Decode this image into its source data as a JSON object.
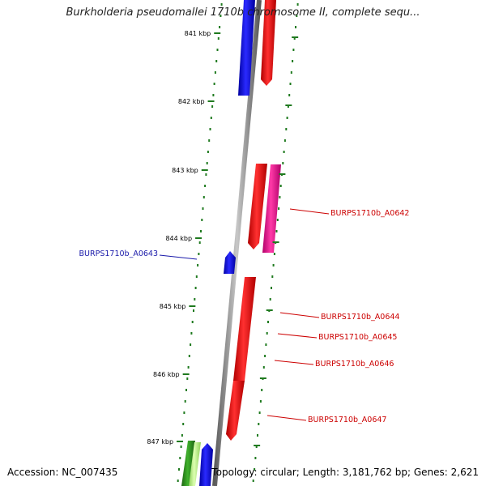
{
  "title": "Burkholderia pseudomallei 1710b chromosome II, complete sequ...",
  "footer": {
    "accession": "Accession: NC_007435",
    "info": "Topology: circular; Length: 3,181,762 bp; Genes: 2,621"
  },
  "colors": {
    "backbone": "#8c8c8c",
    "forward_gene": "#e8121c",
    "reverse_gene": "#1414e0",
    "pseudogene_pink": "#e8148c",
    "green_gene": "#2f8f1f",
    "light_green_gene": "#b2f07a",
    "tick": "#1f7a1f",
    "label_forward": "#cc0000",
    "label_reverse": "#1a1aaa"
  },
  "ticks": [
    {
      "label": "841 kbp"
    },
    {
      "label": "842 kbp"
    },
    {
      "label": "843 kbp"
    },
    {
      "label": "844 kbp"
    },
    {
      "label": "845 kbp"
    },
    {
      "label": "846 kbp"
    },
    {
      "label": "847 kbp"
    }
  ],
  "gene_labels": [
    {
      "text": "BURPS1710b_A0642",
      "strand": "forward"
    },
    {
      "text": "BURPS1710b_A0643",
      "strand": "reverse"
    },
    {
      "text": "BURPS1710b_A0644",
      "strand": "forward"
    },
    {
      "text": "BURPS1710b_A0645",
      "strand": "forward"
    },
    {
      "text": "BURPS1710b_A0646",
      "strand": "forward"
    },
    {
      "text": "BURPS1710b_A0647",
      "strand": "forward"
    }
  ]
}
